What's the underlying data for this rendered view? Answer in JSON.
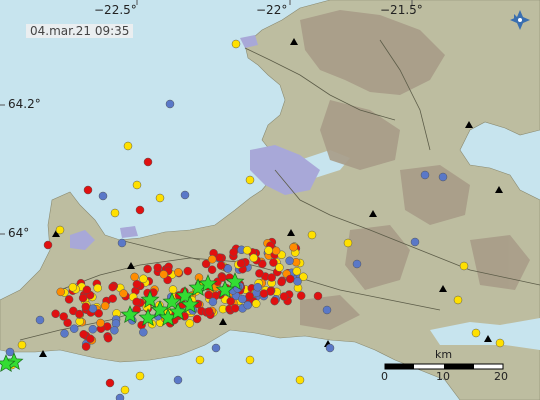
{
  "timestamp": "04.mar.21  09:35",
  "lon_labels": [
    "−22.5°",
    "−22°",
    "−21.5°"
  ],
  "lat_labels": [
    "64.2°",
    "64°"
  ],
  "scale": {
    "unit": "km",
    "ticks": [
      "0",
      "10",
      "20"
    ]
  },
  "colors": {
    "sea": "#c7e4ee",
    "land": "#bdbda0",
    "mountain": "#a89c88",
    "lake": "#a8a8d8",
    "quake_recent": "#e01010",
    "quake_hours": "#ff8c00",
    "quake_day": "#ffe000",
    "quake_old": "#5a78c8",
    "star_large": "#33dd33"
  },
  "icons": [
    "compass-icon",
    "volcano-triangle-icon",
    "large-quake-star-icon"
  ]
}
